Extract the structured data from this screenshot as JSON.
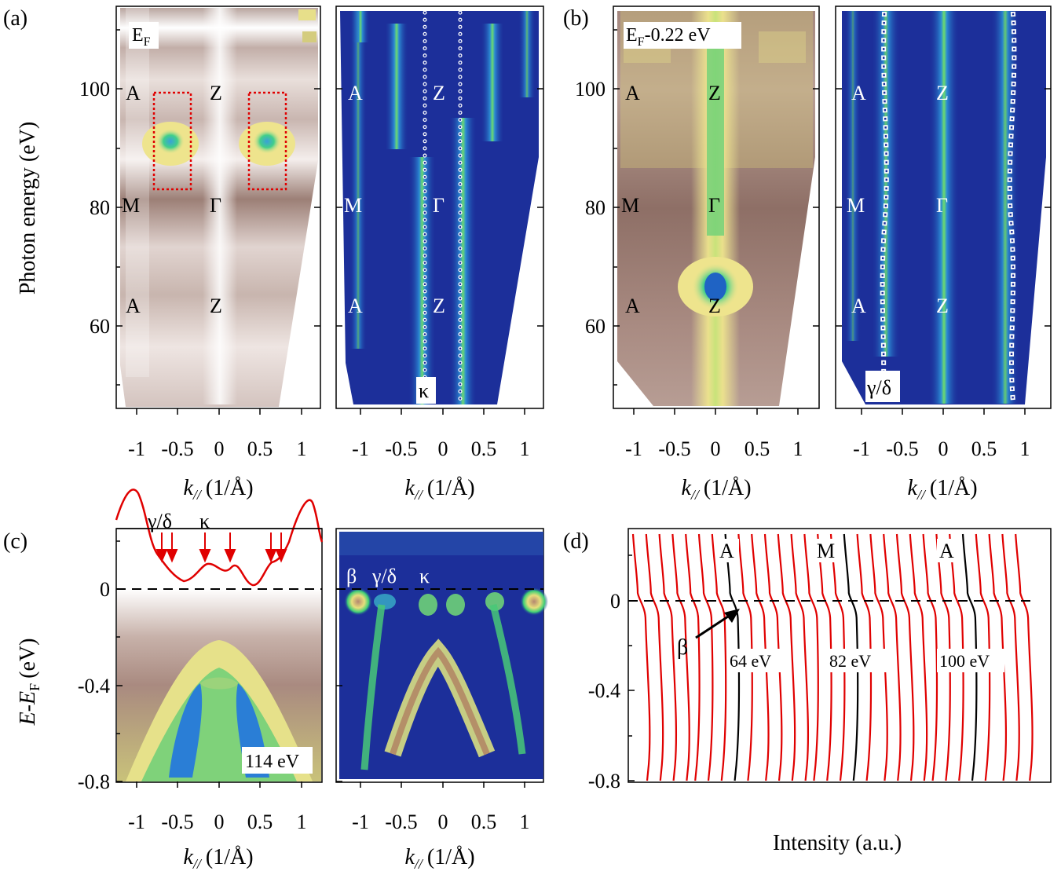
{
  "figure": {
    "panel_labels": [
      "(a)",
      "(b)",
      "(c)",
      "(d)"
    ],
    "axis_labels": {
      "photon_energy": "Photon energy (eV)",
      "k_par_italic": "k",
      "k_par_sub": "//",
      "k_par_unit": "(1/Å)",
      "energy_E": "E",
      "energy_minus": "-",
      "energy_EF": "E",
      "energy_F_sub": "F",
      "energy_unit": "(eV)",
      "intensity": "Intensity (a.u.)"
    },
    "ticks": {
      "k": [
        "-1",
        "-0.5",
        "0",
        "0.5",
        "1"
      ],
      "photon_energy": [
        "100",
        "80",
        "60"
      ],
      "binding_energy": [
        "0",
        "-0.4",
        "-0.8"
      ]
    },
    "panel_a": {
      "map_label_E": "E",
      "map_label_sub": "F",
      "hs_points_left": [
        "A",
        "M",
        "A"
      ],
      "hs_points_center": [
        "Z",
        "Γ",
        "Z"
      ],
      "second_label": "κ"
    },
    "panel_b": {
      "map_label_E": "E",
      "map_label_sub": "F",
      "map_label_rest": "-0.22 eV",
      "hs_points_left": [
        "A",
        "M",
        "A"
      ],
      "hs_points_center": [
        "Z",
        "Γ",
        "Z"
      ],
      "second_label": "γ/δ"
    },
    "panel_c": {
      "mdc_labels": [
        "γ/δ",
        "κ"
      ],
      "photon_label": "114 eV",
      "band_labels": [
        "β",
        "γ/δ",
        "κ"
      ]
    },
    "panel_d": {
      "point_labels": [
        "A",
        "M",
        "A"
      ],
      "energy_labels": [
        "64 eV",
        "82 eV",
        "100 eV"
      ],
      "beta_label": "β"
    },
    "colors": {
      "arpes_brown": "#8a6a60",
      "arpes_yellow": "#e7df8a",
      "arpes_green": "#4cd17a",
      "arpes_blue": "#1c6fd1",
      "deriv_bg": "#1c2f9a",
      "edc_red": "#e00000",
      "edc_black": "#000000",
      "guide_dots": "#ffffff",
      "box_red": "#e00000"
    }
  }
}
